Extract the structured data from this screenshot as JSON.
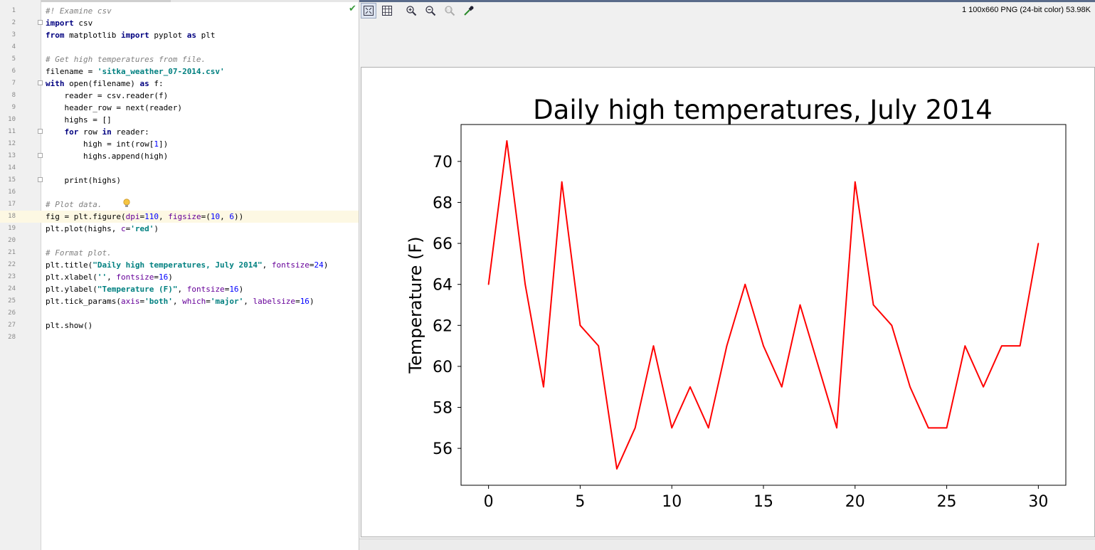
{
  "editor": {
    "lines": [
      {
        "n": "1",
        "fold": false,
        "tokens": [
          {
            "c": "cm",
            "t": "#! Examine csv"
          }
        ]
      },
      {
        "n": "2",
        "fold": true,
        "tokens": [
          {
            "c": "kw",
            "t": "import"
          },
          {
            "c": "",
            "t": " csv"
          }
        ]
      },
      {
        "n": "3",
        "fold": false,
        "tokens": [
          {
            "c": "kw",
            "t": "from"
          },
          {
            "c": "",
            "t": " matplotlib "
          },
          {
            "c": "kw",
            "t": "import"
          },
          {
            "c": "",
            "t": " pyplot "
          },
          {
            "c": "kw",
            "t": "as"
          },
          {
            "c": "",
            "t": " plt"
          }
        ]
      },
      {
        "n": "4",
        "fold": false,
        "tokens": []
      },
      {
        "n": "5",
        "fold": false,
        "tokens": [
          {
            "c": "cm",
            "t": "# Get high temperatures from file."
          }
        ]
      },
      {
        "n": "6",
        "fold": false,
        "tokens": [
          {
            "c": "",
            "t": "filename = "
          },
          {
            "c": "st",
            "t": "'sitka_weather_07-2014.csv'"
          }
        ]
      },
      {
        "n": "7",
        "fold": true,
        "tokens": [
          {
            "c": "kw",
            "t": "with"
          },
          {
            "c": "",
            "t": " open(filename) "
          },
          {
            "c": "kw",
            "t": "as"
          },
          {
            "c": "",
            "t": " f:"
          }
        ]
      },
      {
        "n": "8",
        "fold": false,
        "tokens": [
          {
            "c": "",
            "t": "    reader = csv.reader(f)"
          }
        ]
      },
      {
        "n": "9",
        "fold": false,
        "tokens": [
          {
            "c": "",
            "t": "    header_row = next(reader)"
          }
        ]
      },
      {
        "n": "10",
        "fold": false,
        "tokens": [
          {
            "c": "",
            "t": "    highs = []"
          }
        ]
      },
      {
        "n": "11",
        "fold": true,
        "tokens": [
          {
            "c": "",
            "t": "    "
          },
          {
            "c": "kw",
            "t": "for"
          },
          {
            "c": "",
            "t": " row "
          },
          {
            "c": "kw",
            "t": "in"
          },
          {
            "c": "",
            "t": " reader:"
          }
        ]
      },
      {
        "n": "12",
        "fold": false,
        "tokens": [
          {
            "c": "",
            "t": "        high = int(row["
          },
          {
            "c": "num",
            "t": "1"
          },
          {
            "c": "",
            "t": "])"
          }
        ]
      },
      {
        "n": "13",
        "fold": true,
        "tokens": [
          {
            "c": "",
            "t": "        highs.append(high)"
          }
        ]
      },
      {
        "n": "14",
        "fold": false,
        "tokens": []
      },
      {
        "n": "15",
        "fold": true,
        "tokens": [
          {
            "c": "",
            "t": "    print(highs)"
          }
        ]
      },
      {
        "n": "16",
        "fold": false,
        "tokens": []
      },
      {
        "n": "17",
        "fold": false,
        "tokens": [
          {
            "c": "cm",
            "t": "# Plot data."
          }
        ]
      },
      {
        "n": "18",
        "fold": false,
        "tokens": [
          {
            "c": "",
            "t": "fig = plt.figure("
          },
          {
            "c": "kwarg",
            "t": "dpi"
          },
          {
            "c": "",
            "t": "="
          },
          {
            "c": "num",
            "t": "110"
          },
          {
            "c": "",
            "t": ", "
          },
          {
            "c": "kwarg",
            "t": "figsize"
          },
          {
            "c": "",
            "t": "=("
          },
          {
            "c": "num",
            "t": "10"
          },
          {
            "c": "",
            "t": ", "
          },
          {
            "c": "num",
            "t": "6"
          },
          {
            "c": "",
            "t": "))"
          }
        ]
      },
      {
        "n": "19",
        "fold": false,
        "tokens": [
          {
            "c": "",
            "t": "plt.plot(highs, "
          },
          {
            "c": "kwarg",
            "t": "c"
          },
          {
            "c": "",
            "t": "="
          },
          {
            "c": "st",
            "t": "'red'"
          },
          {
            "c": "",
            "t": ")"
          }
        ]
      },
      {
        "n": "20",
        "fold": false,
        "tokens": []
      },
      {
        "n": "21",
        "fold": false,
        "tokens": [
          {
            "c": "cm",
            "t": "# Format plot."
          }
        ]
      },
      {
        "n": "22",
        "fold": false,
        "tokens": [
          {
            "c": "",
            "t": "plt.title("
          },
          {
            "c": "st",
            "t": "\"Daily high temperatures, July 2014\""
          },
          {
            "c": "",
            "t": ", "
          },
          {
            "c": "kwarg",
            "t": "fontsize"
          },
          {
            "c": "",
            "t": "="
          },
          {
            "c": "num",
            "t": "24"
          },
          {
            "c": "",
            "t": ")"
          }
        ]
      },
      {
        "n": "23",
        "fold": false,
        "tokens": [
          {
            "c": "",
            "t": "plt.xlabel("
          },
          {
            "c": "st",
            "t": "''"
          },
          {
            "c": "",
            "t": ", "
          },
          {
            "c": "kwarg",
            "t": "fontsize"
          },
          {
            "c": "",
            "t": "="
          },
          {
            "c": "num",
            "t": "16"
          },
          {
            "c": "",
            "t": ")"
          }
        ]
      },
      {
        "n": "24",
        "fold": false,
        "tokens": [
          {
            "c": "",
            "t": "plt.ylabel("
          },
          {
            "c": "st",
            "t": "\"Temperature (F)\""
          },
          {
            "c": "",
            "t": ", "
          },
          {
            "c": "kwarg",
            "t": "fontsize"
          },
          {
            "c": "",
            "t": "="
          },
          {
            "c": "num",
            "t": "16"
          },
          {
            "c": "",
            "t": ")"
          }
        ]
      },
      {
        "n": "25",
        "fold": false,
        "tokens": [
          {
            "c": "",
            "t": "plt.tick_params("
          },
          {
            "c": "kwarg",
            "t": "axis"
          },
          {
            "c": "",
            "t": "="
          },
          {
            "c": "st",
            "t": "'both'"
          },
          {
            "c": "",
            "t": ", "
          },
          {
            "c": "kwarg",
            "t": "which"
          },
          {
            "c": "",
            "t": "="
          },
          {
            "c": "st",
            "t": "'major'"
          },
          {
            "c": "",
            "t": ", "
          },
          {
            "c": "kwarg",
            "t": "labelsize"
          },
          {
            "c": "",
            "t": "="
          },
          {
            "c": "num",
            "t": "16"
          },
          {
            "c": "",
            "t": ")"
          }
        ]
      },
      {
        "n": "26",
        "fold": false,
        "tokens": []
      },
      {
        "n": "27",
        "fold": false,
        "tokens": [
          {
            "c": "",
            "t": "plt.show()"
          }
        ]
      },
      {
        "n": "28",
        "fold": false,
        "tokens": []
      }
    ],
    "current_line": "18"
  },
  "viewer": {
    "image_info": "1 100x660 PNG (24-bit color) 53.98K",
    "toolbar": [
      {
        "name": "fit-to-window-icon",
        "active": true
      },
      {
        "name": "actual-size-icon",
        "active": false
      },
      {
        "name": "zoom-in-icon",
        "active": false
      },
      {
        "name": "zoom-out-icon",
        "active": false
      },
      {
        "name": "zoom-reset-icon",
        "active": false
      },
      {
        "name": "color-picker-icon",
        "active": false
      }
    ]
  },
  "chart_data": {
    "type": "line",
    "title": "Daily high temperatures, July 2014",
    "xlabel": "",
    "ylabel": "Temperature (F)",
    "x": [
      0,
      1,
      2,
      3,
      4,
      5,
      6,
      7,
      8,
      9,
      10,
      11,
      12,
      13,
      14,
      15,
      16,
      17,
      18,
      19,
      20,
      21,
      22,
      23,
      24,
      25,
      26,
      27,
      28,
      29,
      30
    ],
    "series": [
      {
        "color": "#ff0000",
        "values": [
          64,
          71,
          64,
          59,
          69,
          62,
          61,
          55,
          57,
          61,
          57,
          59,
          57,
          61,
          64,
          61,
          59,
          63,
          60,
          57,
          69,
          63,
          62,
          59,
          57,
          57,
          61,
          59,
          61,
          61,
          66
        ]
      }
    ],
    "xlim": [
      -1.5,
      31.5
    ],
    "ylim": [
      54.2,
      71.8
    ],
    "xticks": [
      0,
      5,
      10,
      15,
      20,
      25,
      30
    ],
    "yticks": [
      56,
      58,
      60,
      62,
      64,
      66,
      68,
      70
    ],
    "grid": false,
    "legend": "none"
  }
}
